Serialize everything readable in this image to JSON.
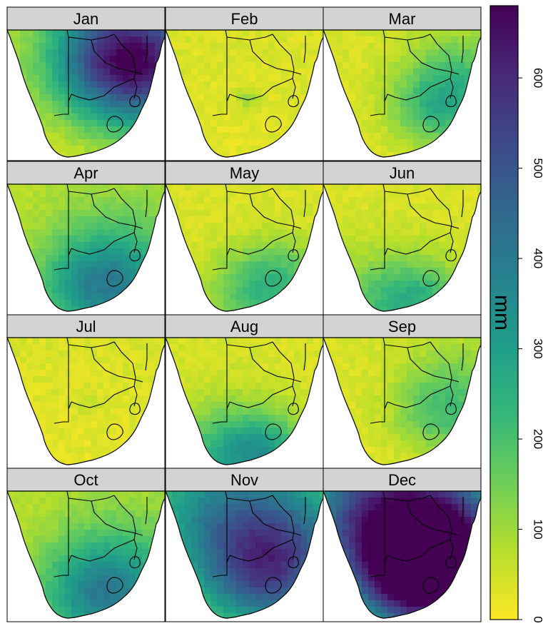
{
  "panels": [
    {
      "month": "Jan",
      "intensity": 0.55,
      "focus": "northeast"
    },
    {
      "month": "Feb",
      "intensity": 0.12,
      "focus": "flat"
    },
    {
      "month": "Mar",
      "intensity": 0.25,
      "focus": "east"
    },
    {
      "month": "Apr",
      "intensity": 0.32,
      "focus": "southeast"
    },
    {
      "month": "May",
      "intensity": 0.2,
      "focus": "south"
    },
    {
      "month": "Jun",
      "intensity": 0.22,
      "focus": "southcoast"
    },
    {
      "month": "Jul",
      "intensity": 0.05,
      "focus": "flat"
    },
    {
      "month": "Aug",
      "intensity": 0.3,
      "focus": "southcoast"
    },
    {
      "month": "Sep",
      "intensity": 0.18,
      "focus": "east"
    },
    {
      "month": "Oct",
      "intensity": 0.32,
      "focus": "southeast"
    },
    {
      "month": "Nov",
      "intensity": 0.42,
      "focus": "north"
    },
    {
      "month": "Dec",
      "intensity": 0.72,
      "focus": "north"
    }
  ],
  "legend": {
    "unit": "mm",
    "min": 0,
    "max": 680,
    "ticks": [
      0,
      100,
      200,
      300,
      400,
      500,
      600
    ],
    "colors": [
      "#fde725",
      "#b5de2b",
      "#6ece58",
      "#35b779",
      "#1f9e89",
      "#26828e",
      "#31688e",
      "#3e4989",
      "#482878",
      "#440154"
    ]
  }
}
